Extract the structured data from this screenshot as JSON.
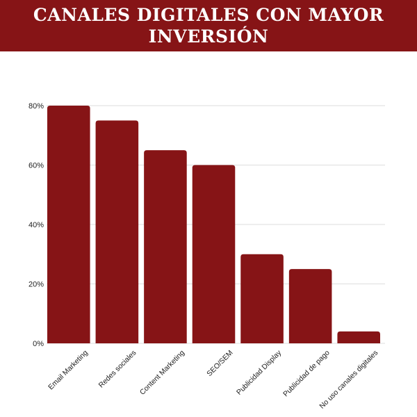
{
  "header": {
    "title": "CANALES DIGITALES CON MAYOR INVERSIÓN"
  },
  "colors": {
    "banner": "#861416",
    "bar": "#861416",
    "grid": "#dddddd",
    "text": "#222222"
  },
  "chart_data": {
    "type": "bar",
    "title": "CANALES DIGITALES CON MAYOR INVERSIÓN",
    "xlabel": "",
    "ylabel": "",
    "categories": [
      "Email Marketing",
      "Redes sociales",
      "Content Marketing",
      "SEO/SEM",
      "Publicidad Display",
      "Publicidad de pago",
      "No uso canales digitales"
    ],
    "values": [
      80,
      75,
      65,
      60,
      30,
      25,
      4
    ],
    "ylim": [
      0,
      80
    ],
    "yticks": [
      0,
      20,
      40,
      60,
      80
    ],
    "ytick_format": "{v}%",
    "grid": true,
    "legend": "none"
  }
}
